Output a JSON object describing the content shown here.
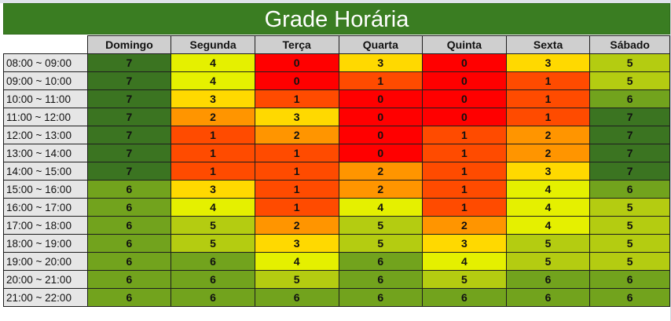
{
  "title": "Grade Horária",
  "days": [
    "Domingo",
    "Segunda",
    "Terça",
    "Quarta",
    "Quinta",
    "Sexta",
    "Sábado"
  ],
  "rows": [
    {
      "time": "08:00 ~ 09:00",
      "values": [
        7,
        4,
        0,
        3,
        0,
        3,
        5
      ]
    },
    {
      "time": "09:00 ~ 10:00",
      "values": [
        7,
        4,
        0,
        1,
        0,
        1,
        5
      ]
    },
    {
      "time": "10:00 ~ 11:00",
      "values": [
        7,
        3,
        1,
        0,
        0,
        1,
        6
      ]
    },
    {
      "time": "11:00 ~ 12:00",
      "values": [
        7,
        2,
        3,
        0,
        0,
        1,
        7
      ]
    },
    {
      "time": "12:00 ~ 13:00",
      "values": [
        7,
        1,
        2,
        0,
        1,
        2,
        7
      ]
    },
    {
      "time": "13:00 ~ 14:00",
      "values": [
        7,
        1,
        1,
        0,
        1,
        2,
        7
      ]
    },
    {
      "time": "14:00 ~ 15:00",
      "values": [
        7,
        1,
        1,
        2,
        1,
        3,
        7
      ]
    },
    {
      "time": "15:00 ~ 16:00",
      "values": [
        6,
        3,
        1,
        2,
        1,
        4,
        6
      ]
    },
    {
      "time": "16:00 ~ 17:00",
      "values": [
        6,
        4,
        1,
        4,
        1,
        4,
        5
      ]
    },
    {
      "time": "17:00 ~ 18:00",
      "values": [
        6,
        5,
        2,
        5,
        2,
        4,
        5
      ]
    },
    {
      "time": "18:00 ~ 19:00",
      "values": [
        6,
        5,
        3,
        5,
        3,
        5,
        5
      ]
    },
    {
      "time": "19:00 ~ 20:00",
      "values": [
        6,
        6,
        4,
        6,
        4,
        5,
        5
      ]
    },
    {
      "time": "20:00 ~ 21:00",
      "values": [
        6,
        6,
        5,
        6,
        5,
        6,
        6
      ]
    },
    {
      "time": "21:00 ~ 22:00",
      "values": [
        6,
        6,
        6,
        6,
        6,
        6,
        6
      ]
    }
  ],
  "value_colors": {
    "0": "#ff0000",
    "1": "#ff4b00",
    "2": "#ff9500",
    "3": "#ffd900",
    "4": "#e5f000",
    "5": "#b4cc11",
    "6": "#72a31d",
    "7": "#3b7421"
  },
  "colors": {
    "title_bar": "#3a7d22",
    "header_bg": "#cfcfcf",
    "time_bg": "#e6e6e6"
  }
}
